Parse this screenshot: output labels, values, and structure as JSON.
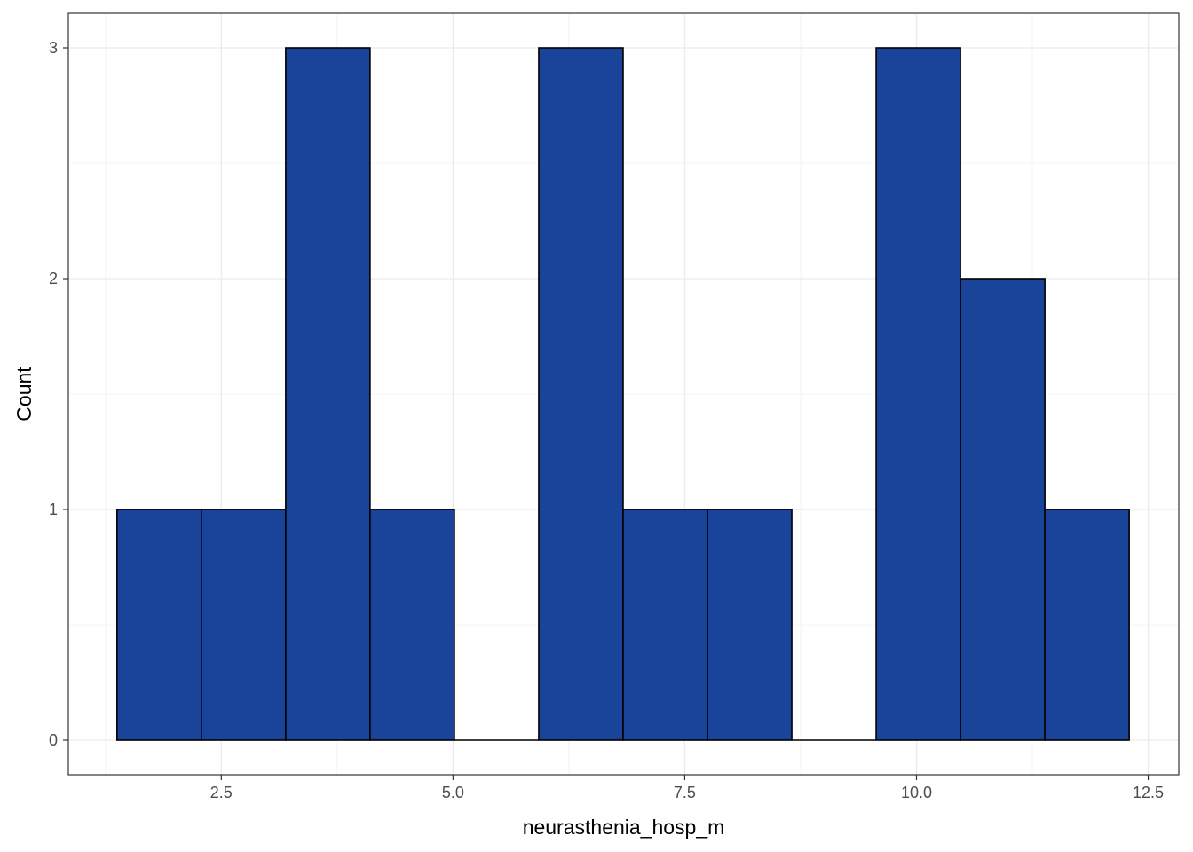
{
  "chart_data": {
    "type": "bar",
    "title": "",
    "xlabel": "neurasthenia_hosp_m",
    "ylabel": "Count",
    "bins": [
      {
        "x0": 1.375,
        "x1": 2.285,
        "count": 1
      },
      {
        "x0": 2.285,
        "x1": 3.195,
        "count": 1
      },
      {
        "x0": 3.195,
        "x1": 4.105,
        "count": 3
      },
      {
        "x0": 4.105,
        "x1": 5.015,
        "count": 1
      },
      {
        "x0": 5.015,
        "x1": 5.925,
        "count": 0
      },
      {
        "x0": 5.925,
        "x1": 6.835,
        "count": 3
      },
      {
        "x0": 6.835,
        "x1": 7.745,
        "count": 1
      },
      {
        "x0": 7.745,
        "x1": 8.655,
        "count": 1
      },
      {
        "x0": 8.655,
        "x1": 9.565,
        "count": 0
      },
      {
        "x0": 9.565,
        "x1": 10.475,
        "count": 3
      },
      {
        "x0": 10.475,
        "x1": 11.385,
        "count": 2
      },
      {
        "x0": 11.385,
        "x1": 12.295,
        "count": 1
      }
    ],
    "xlim": [
      0.85,
      12.83
    ],
    "ylim": [
      -0.15,
      3.15
    ],
    "x_ticks": [
      2.5,
      5.0,
      7.5,
      10.0,
      12.5
    ],
    "x_tick_labels": [
      "2.5",
      "5.0",
      "7.5",
      "10.0",
      "12.5"
    ],
    "y_ticks": [
      0,
      1,
      2,
      3
    ],
    "y_tick_labels": [
      "0",
      "1",
      "2",
      "3"
    ],
    "grid": true,
    "legend": "none",
    "colors": {
      "bar_fill": "#194499",
      "bar_stroke": "#000000",
      "grid_major": "#ebebeb",
      "grid_minor": "#f4f4f4",
      "panel_border": "#333333",
      "tick_text": "#4d4d4d"
    }
  }
}
